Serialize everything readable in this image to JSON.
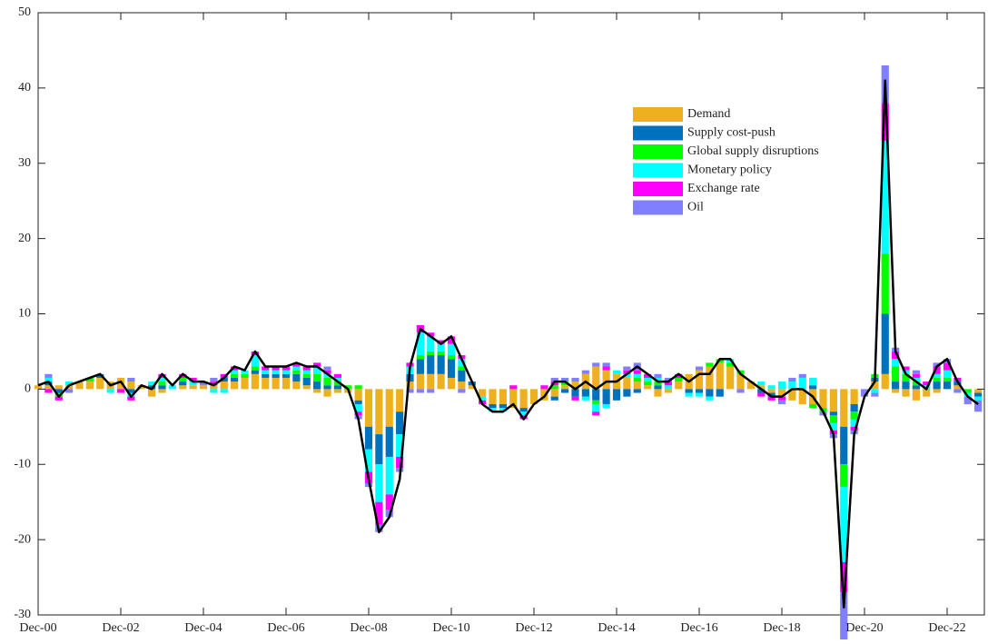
{
  "chart_data": {
    "type": "stacked_bar_line",
    "categories": [
      "Dec-00",
      null,
      null,
      null,
      null,
      null,
      null,
      null,
      "Dec-02",
      null,
      null,
      null,
      null,
      null,
      null,
      null,
      "Dec-04",
      null,
      null,
      null,
      null,
      null,
      null,
      null,
      "Dec-06",
      null,
      null,
      null,
      null,
      null,
      null,
      null,
      "Dec-08",
      null,
      null,
      null,
      null,
      null,
      null,
      null,
      "Dec-10",
      null,
      null,
      null,
      null,
      null,
      null,
      null,
      "Dec-12",
      null,
      null,
      null,
      null,
      null,
      null,
      null,
      "Dec-14",
      null,
      null,
      null,
      null,
      null,
      null,
      null,
      "Dec-16",
      null,
      null,
      null,
      null,
      null,
      null,
      null,
      "Dec-18",
      null,
      null,
      null,
      null,
      null,
      null,
      null,
      "Dec-20",
      null,
      null,
      null,
      null,
      null,
      null,
      null,
      "Dec-22",
      null,
      null,
      null
    ],
    "series": [
      {
        "name": "Demand",
        "color": "#edb120",
        "values": [
          0.5,
          0.5,
          0.5,
          0.5,
          1,
          1,
          1.5,
          1,
          1.5,
          1,
          0.5,
          -1,
          -0.5,
          0,
          0.5,
          0.5,
          0.5,
          0.5,
          1,
          1,
          1.5,
          2,
          1.5,
          1.5,
          1.5,
          1,
          0.5,
          -0.5,
          -1,
          -0.5,
          -0.5,
          -1.5,
          -5,
          -6,
          -5,
          -3,
          1,
          2,
          2,
          2,
          1.5,
          1,
          0.5,
          -1,
          -2,
          -2,
          -2.5,
          -2.5,
          -2,
          -1.5,
          -1,
          0.5,
          1,
          2,
          3,
          2.5,
          2,
          1.5,
          1,
          0.5,
          -1,
          -0.5,
          1,
          2,
          2.5,
          3,
          3.5,
          3,
          2,
          1,
          0.5,
          -0.5,
          -1,
          -1.5,
          -2,
          -2,
          -2.5,
          -3,
          -5,
          -2,
          0,
          1,
          2,
          -0.5,
          -1,
          -1.5,
          -1,
          -0.5,
          0,
          0.5,
          0,
          -0.5
        ]
      },
      {
        "name": "Supply cost-push",
        "color": "#0072bd",
        "values": [
          0,
          0.5,
          -0.5,
          0,
          0,
          0,
          0.5,
          0,
          0,
          -0.5,
          0,
          0.5,
          0.5,
          0,
          0.5,
          0,
          0,
          0,
          0.5,
          0.5,
          0,
          0.5,
          0.5,
          0.5,
          0.5,
          1,
          1,
          1,
          0.5,
          0.5,
          0,
          -0.5,
          -3,
          -4,
          -4,
          -3,
          1,
          2,
          2.5,
          2.5,
          2.5,
          1.5,
          0.5,
          0,
          -0.5,
          -0.5,
          0,
          -0.5,
          0,
          0,
          -0.5,
          -0.5,
          -1,
          -1,
          -1.5,
          -2,
          -1.5,
          -1,
          -0.5,
          0,
          0.5,
          0,
          0,
          -0.5,
          -0.5,
          -1,
          -1,
          0,
          0,
          0,
          -0.5,
          -0.5,
          0,
          0,
          0,
          0.5,
          0,
          -0.5,
          -5,
          -1,
          0,
          0.5,
          8,
          1,
          1,
          0.5,
          0,
          1,
          1,
          0.5,
          0,
          -0.5
        ]
      },
      {
        "name": "Global supply disruptions",
        "color": "#00ff00",
        "values": [
          0,
          0,
          -0.5,
          0,
          0,
          0.5,
          0,
          0,
          0,
          0,
          0,
          0,
          0.5,
          0,
          0.5,
          0,
          0,
          0,
          0,
          0.5,
          0.5,
          0.5,
          0,
          0,
          0,
          0.5,
          0.5,
          1,
          1,
          0.5,
          0.5,
          0.5,
          0,
          0,
          0,
          0,
          0,
          0.5,
          0.5,
          0.5,
          0.5,
          0.5,
          0,
          0,
          0,
          0,
          0,
          0,
          0,
          0,
          0.5,
          0.5,
          0,
          0,
          -0.5,
          0,
          0,
          0,
          0.5,
          0.5,
          0.5,
          0,
          0.5,
          0,
          0,
          0.5,
          0.5,
          0.5,
          0.5,
          0,
          0,
          0,
          0,
          0,
          0,
          -0.5,
          -0.5,
          -1,
          -3,
          -1,
          0,
          0.5,
          8,
          2,
          1,
          0.5,
          0,
          0.5,
          0.5,
          0,
          -0.5,
          0
        ]
      },
      {
        "name": "Monetary policy",
        "color": "#00ffff",
        "values": [
          0,
          0.5,
          0,
          0.5,
          0,
          0,
          0,
          -0.5,
          0,
          -0.5,
          0,
          0.5,
          0.5,
          0.5,
          0,
          0.5,
          0,
          -0.5,
          -0.5,
          0.5,
          0.5,
          1.5,
          0.5,
          0.5,
          0.5,
          0.5,
          0.5,
          1,
          0.5,
          0.5,
          0,
          -1,
          -3,
          -5,
          -5,
          -3,
          1,
          3,
          2,
          1,
          1.5,
          1,
          0,
          -0.5,
          -0.5,
          -0.5,
          0,
          -0.5,
          0,
          0,
          0,
          0,
          0,
          -0.5,
          -1,
          -0.5,
          0.5,
          0.5,
          0.5,
          0.5,
          0.5,
          0.5,
          0,
          -0.5,
          -0.5,
          -0.5,
          0,
          0.5,
          0,
          0,
          0.5,
          0.5,
          1,
          1,
          1.5,
          1,
          0,
          -1,
          -10,
          -1,
          0,
          -0.5,
          15,
          1,
          0.5,
          0.5,
          0.5,
          0.5,
          1,
          0,
          -0.5,
          -0.5
        ]
      },
      {
        "name": "Exchange rate",
        "color": "#ff00ff",
        "values": [
          0,
          -0.5,
          -0.5,
          0,
          0,
          0,
          0,
          0,
          -0.5,
          -0.5,
          0,
          0,
          0.5,
          0,
          0.5,
          0.5,
          0,
          0.5,
          0.5,
          0.5,
          0,
          0.5,
          0.5,
          0.5,
          0.5,
          0.5,
          0.5,
          0.5,
          0.5,
          0.5,
          0,
          -0.5,
          -1.5,
          -3,
          -2,
          -1.5,
          0.5,
          1,
          0.5,
          0.5,
          1,
          0.5,
          0,
          -0.5,
          0,
          0,
          0.5,
          -0.5,
          0,
          0.5,
          0.5,
          0,
          -0.5,
          0,
          -0.5,
          0.5,
          0,
          0.5,
          0.5,
          0.5,
          0,
          0.5,
          0.5,
          0,
          0,
          0,
          0,
          0,
          0,
          0,
          -0.5,
          -0.5,
          -0.5,
          0,
          0,
          0,
          0,
          -0.5,
          -4,
          -0.5,
          0,
          0,
          5,
          1,
          0.5,
          0.5,
          0.5,
          1,
          1,
          0.5,
          0,
          0
        ]
      },
      {
        "name": "Oil",
        "color": "#8080ff",
        "values": [
          0,
          0.5,
          0,
          -0.5,
          0,
          0,
          0,
          0,
          0,
          0.5,
          0,
          0,
          0,
          0,
          0,
          0,
          0.5,
          0.5,
          0,
          0,
          0,
          0,
          0,
          0,
          0,
          0,
          0,
          0,
          0.5,
          0,
          0,
          -0.5,
          -0.5,
          -1,
          -1,
          -0.5,
          -0.5,
          -0.5,
          -0.5,
          0,
          0,
          -0.5,
          0,
          0,
          0,
          0,
          0,
          0,
          0,
          0,
          0.5,
          0.5,
          0.5,
          0.5,
          0.5,
          0.5,
          0,
          0.5,
          1,
          0,
          0.5,
          0.5,
          0,
          0,
          0.5,
          0,
          0,
          0,
          -0.5,
          0,
          0,
          0,
          -0.5,
          0.5,
          0.5,
          0,
          -0.5,
          -0.5,
          -7,
          -0.5,
          -1,
          -0.5,
          5,
          0.5,
          0,
          0.5,
          0,
          0.5,
          0.5,
          -0.5,
          -1,
          -1.5
        ]
      }
    ],
    "line": {
      "color": "#000000",
      "values": [
        0.5,
        1,
        -1,
        0.5,
        1,
        1.5,
        2,
        0.5,
        1,
        -1,
        0.5,
        0,
        2,
        0.5,
        2,
        1,
        1,
        0.5,
        1.5,
        3,
        2.5,
        5,
        3,
        3,
        3,
        3.5,
        3,
        3,
        2,
        1,
        0,
        -4,
        -12,
        -19,
        -17,
        -12,
        3,
        8,
        7,
        6,
        7,
        4,
        1,
        -2,
        -3,
        -3,
        -2,
        -4,
        -2,
        -1,
        1,
        1,
        0,
        1,
        0,
        1,
        1,
        2,
        3,
        2,
        1,
        1,
        2,
        1,
        2,
        2,
        4,
        4,
        2,
        1,
        0,
        -1,
        -1,
        0,
        0,
        -1,
        -3,
        -6,
        -29,
        -6,
        -1,
        1,
        41,
        5,
        2,
        1,
        0,
        3,
        4,
        1,
        -1,
        -2
      ]
    },
    "ylim": [
      -30,
      50
    ],
    "yticks": [
      -30,
      -20,
      -10,
      0,
      10,
      20,
      30,
      40,
      50
    ],
    "legend": "upper right"
  }
}
